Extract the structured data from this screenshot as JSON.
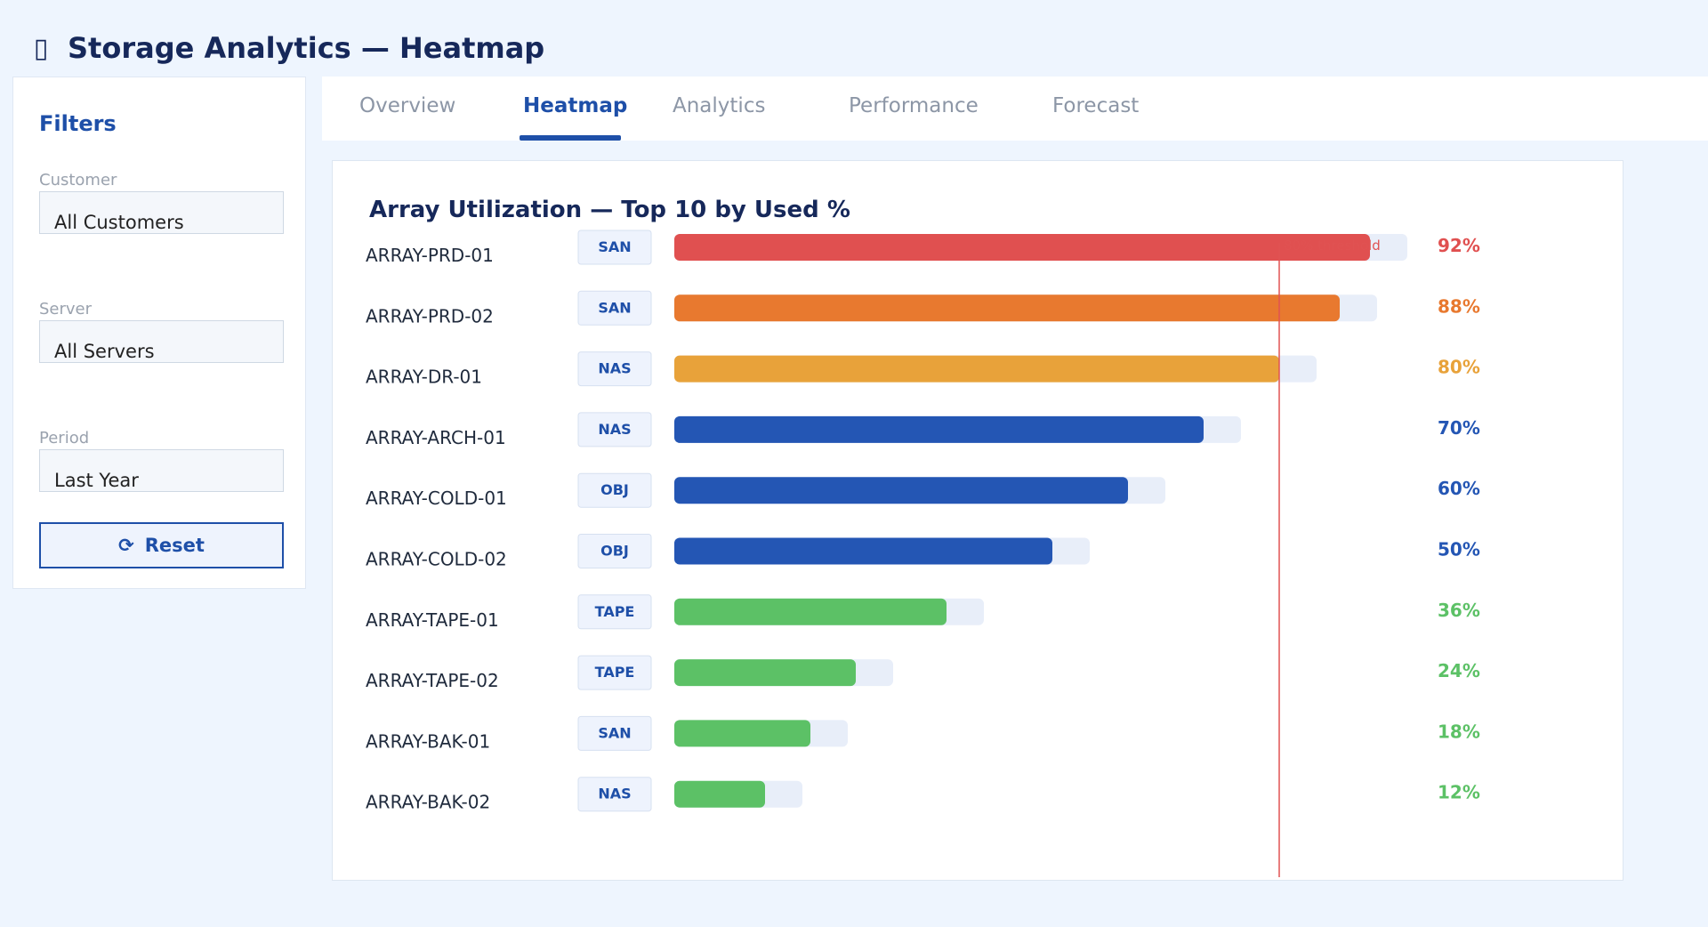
{
  "app": {
    "icon": "database-icon",
    "title": "Storage Analytics — Heatmap"
  },
  "filters": {
    "heading": "Filters",
    "customer": {
      "label": "Customer",
      "value": "All Customers"
    },
    "server": {
      "label": "Server",
      "value": "All Servers"
    },
    "period": {
      "label": "Period",
      "value": "Last Year"
    },
    "reset": {
      "icon": "refresh-icon",
      "glyph": "⟳",
      "label": "Reset"
    }
  },
  "tabs": [
    {
      "label": "Overview",
      "active": false
    },
    {
      "label": "Heatmap",
      "active": true
    },
    {
      "label": "Analytics",
      "active": false
    },
    {
      "label": "Performance",
      "active": false
    },
    {
      "label": "Forecast",
      "active": false
    }
  ],
  "panel": {
    "title": "Array Utilization — Top 10 by Used %"
  },
  "chart_data": {
    "type": "bar",
    "orientation": "horizontal",
    "title": "Array Utilization — Top 10 by Used %",
    "categories": [
      "ARRAY-PRD-01",
      "ARRAY-PRD-02",
      "ARRAY-DR-01",
      "ARRAY-ARCH-01",
      "ARRAY-COLD-01",
      "ARRAY-COLD-02",
      "ARRAY-TAPE-01",
      "ARRAY-TAPE-02",
      "ARRAY-BAK-01",
      "ARRAY-BAK-02"
    ],
    "types": [
      "SAN",
      "SAN",
      "NAS",
      "NAS",
      "OBJ",
      "OBJ",
      "TAPE",
      "TAPE",
      "SAN",
      "NAS"
    ],
    "values": [
      92,
      88,
      80,
      70,
      60,
      50,
      36,
      24,
      18,
      12
    ],
    "value_labels": [
      "92%",
      "88%",
      "80%",
      "70%",
      "60%",
      "50%",
      "36%",
      "24%",
      "18%",
      "12%"
    ],
    "threshold": {
      "value": 80,
      "label": "80% threshold",
      "color": "#e05252"
    },
    "colors": {
      "critical": "#e05050",
      "high": "#e8792f",
      "warning": "#e8a23a",
      "normal": "#2456b4",
      "low": "#5cc166",
      "track": "#e8eef9"
    }
  }
}
